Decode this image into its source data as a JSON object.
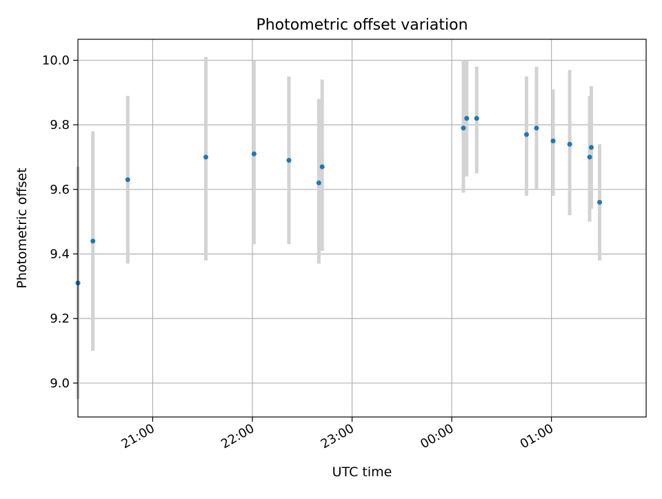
{
  "chart_data": {
    "type": "scatter",
    "title": "Photometric offset variation",
    "xlabel": "UTC time",
    "ylabel": "Photometric offset",
    "x_axis_kind": "time",
    "x_ticks": [
      "21:00",
      "22:00",
      "23:00",
      "00:00",
      "01:00"
    ],
    "y_ticks": [
      "9.0",
      "9.2",
      "9.4",
      "9.6",
      "9.8",
      "10.0"
    ],
    "xlim": [
      "20:15",
      "01:57"
    ],
    "ylim": [
      8.895,
      10.065
    ],
    "grid": true,
    "colors": {
      "marker": "#1f77b4",
      "errorbar": "#d3d3d3",
      "grid": "#b0b0b0"
    },
    "points": [
      {
        "x": "20:15",
        "y": 9.31,
        "y_low": 8.95,
        "y_high": 9.67
      },
      {
        "x": "20:24",
        "y": 9.44,
        "y_low": 9.1,
        "y_high": 9.78
      },
      {
        "x": "20:45",
        "y": 9.63,
        "y_low": 9.37,
        "y_high": 9.89
      },
      {
        "x": "21:32",
        "y": 9.7,
        "y_low": 9.38,
        "y_high": 10.01
      },
      {
        "x": "22:01",
        "y": 9.71,
        "y_low": 9.43,
        "y_high": 10.0
      },
      {
        "x": "22:22",
        "y": 9.69,
        "y_low": 9.43,
        "y_high": 9.95
      },
      {
        "x": "22:40",
        "y": 9.62,
        "y_low": 9.37,
        "y_high": 9.88
      },
      {
        "x": "22:42",
        "y": 9.67,
        "y_low": 9.41,
        "y_high": 9.94
      },
      {
        "x": "00:07",
        "y": 9.79,
        "y_low": 9.59,
        "y_high": 10.0
      },
      {
        "x": "00:09",
        "y": 9.82,
        "y_low": 9.64,
        "y_high": 10.0
      },
      {
        "x": "00:15",
        "y": 9.82,
        "y_low": 9.65,
        "y_high": 9.98
      },
      {
        "x": "00:45",
        "y": 9.77,
        "y_low": 9.58,
        "y_high": 9.95
      },
      {
        "x": "00:51",
        "y": 9.79,
        "y_low": 9.6,
        "y_high": 9.98
      },
      {
        "x": "01:01",
        "y": 9.75,
        "y_low": 9.58,
        "y_high": 9.91
      },
      {
        "x": "01:11",
        "y": 9.74,
        "y_low": 9.52,
        "y_high": 9.97
      },
      {
        "x": "01:23",
        "y": 9.7,
        "y_low": 9.5,
        "y_high": 9.89
      },
      {
        "x": "01:24",
        "y": 9.73,
        "y_low": 9.54,
        "y_high": 9.92
      },
      {
        "x": "01:29",
        "y": 9.56,
        "y_low": 9.38,
        "y_high": 9.74
      }
    ]
  }
}
